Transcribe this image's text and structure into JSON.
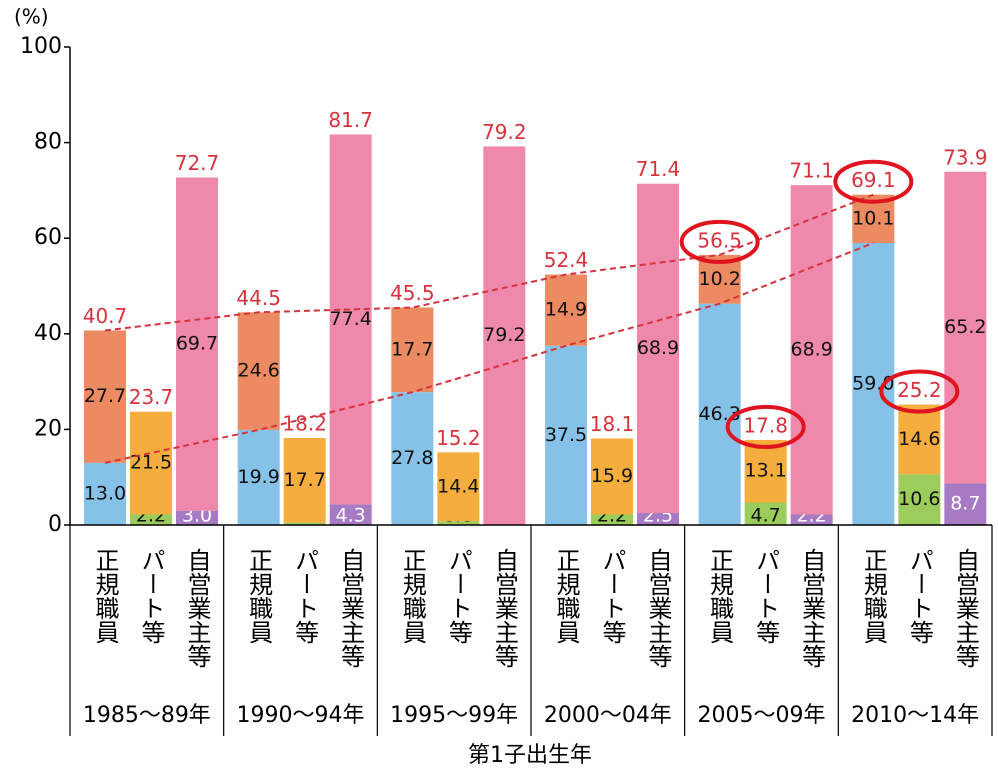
{
  "chart_data": {
    "type": "grouped_stacked_bar",
    "y_unit": "(%)",
    "x_axis_label": "第1子出生年",
    "groups": [
      "1985〜89年",
      "1990〜94年",
      "1995〜99年",
      "2000〜04年",
      "2005〜09年",
      "2010〜14年"
    ],
    "ylim": [
      0,
      100
    ],
    "yticks": [
      0,
      20,
      40,
      60,
      80,
      100
    ],
    "total_color": "#d7333f",
    "trend_lines": true,
    "circled": [
      [
        0,
        4
      ],
      [
        0,
        5
      ],
      [
        1,
        4
      ],
      [
        1,
        5
      ]
    ],
    "series": [
      {
        "name": "正規職員",
        "totals": [
          40.7,
          44.5,
          45.5,
          52.4,
          56.5,
          69.1
        ],
        "segments": [
          {
            "color": "#86c2e8",
            "values": [
              13.0,
              19.9,
              27.8,
              37.5,
              46.3,
              59.0
            ],
            "value_labels": [
              "13.0",
              "19.9",
              "27.8",
              "37.5",
              "46.3",
              "59.0"
            ]
          },
          {
            "color": "#ec8a62",
            "values": [
              27.7,
              24.6,
              17.7,
              14.9,
              10.2,
              10.1
            ],
            "value_labels": [
              "27.7",
              "24.6",
              "17.7",
              "14.9",
              "10.2",
              "10.1"
            ]
          }
        ]
      },
      {
        "name": "パート等",
        "totals": [
          23.7,
          18.2,
          15.2,
          18.1,
          17.8,
          25.2
        ],
        "segments": [
          {
            "color": "#9ccc5b",
            "values": [
              2.2,
              0.5,
              0.8,
              2.2,
              4.7,
              10.6
            ],
            "value_labels": [
              "2.2",
              "0.5",
              "0.8",
              "2.2",
              "4.7",
              "10.6"
            ]
          },
          {
            "color": "#f5ae3d",
            "values": [
              21.5,
              17.7,
              14.4,
              15.9,
              13.1,
              14.6
            ],
            "value_labels": [
              "21.5",
              "17.7",
              "14.4",
              "15.9",
              "13.1",
              "14.6"
            ]
          }
        ]
      },
      {
        "name": "自営業主等",
        "totals": [
          72.7,
          81.7,
          79.2,
          71.4,
          71.1,
          73.9
        ],
        "segments": [
          {
            "color": "#a77bc4",
            "values": [
              3.0,
              4.3,
              0,
              2.5,
              2.2,
              8.7
            ],
            "value_labels": [
              "3.0",
              "4.3",
              "0",
              "2.5",
              "2.2",
              "8.7"
            ]
          },
          {
            "color": "#ef89ab",
            "values": [
              69.7,
              77.4,
              79.2,
              68.9,
              68.9,
              65.2
            ],
            "value_labels": [
              "69.7",
              "77.4",
              "79.2",
              "68.9",
              "68.9",
              "65.2"
            ]
          }
        ]
      }
    ]
  }
}
